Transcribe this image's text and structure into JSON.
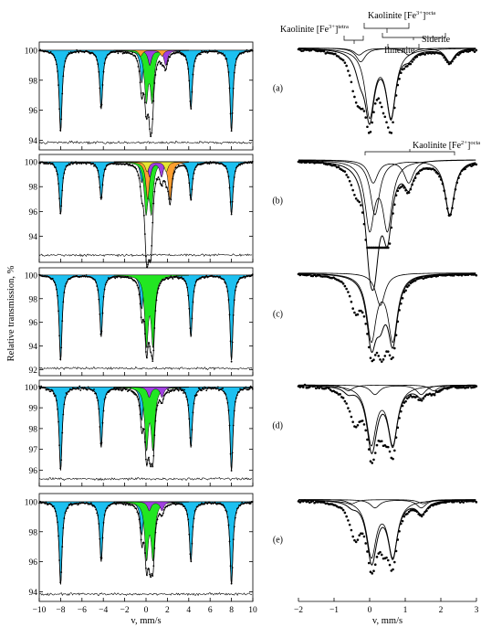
{
  "chart_data": {
    "type": "scatter",
    "ylabel": "Relative transmission, %",
    "left_xlabel": "v, mm/s",
    "right_xlabel": "v, mm/s",
    "left_xlim": [
      -10,
      10
    ],
    "right_xlim": [
      -2,
      3
    ],
    "left_xticks": [
      "−10",
      "−8",
      "−6",
      "−4",
      "−2",
      "0",
      "2",
      "4",
      "6",
      "8",
      "10"
    ],
    "right_xticks": [
      "−2",
      "−1",
      "0",
      "1",
      "2",
      "3"
    ],
    "colors": {
      "magnetic": "#1cc0f0",
      "doublet_green": "#22e622",
      "doublet_orange": "#ff9f30",
      "doublet_purple": "#a040e0",
      "doublet_yellow": "#e6e633"
    },
    "annotations": {
      "kaolinite_tetra": {
        "text": "Kaolinite [Fe",
        "sup": "3+",
        "tail": "]",
        "sub": "tetra"
      },
      "kaolinite_octa3": {
        "text": "Kaolinite [Fe",
        "sup": "3+",
        "tail": "]",
        "sub": "octa"
      },
      "siderite": "Siderite",
      "ilmenite": "Ilmenite",
      "kaolinite_octa2": {
        "text": "Kaolinite [Fe",
        "sup": "2+",
        "tail": "]",
        "sub": "octa"
      }
    },
    "panels": [
      {
        "label": "(a)",
        "ylim": [
          93.6,
          100.3
        ],
        "yticks": [
          "100",
          "98",
          "96",
          "94"
        ],
        "min": 94.6,
        "doublets": [
          {
            "c": 0.3,
            "q": 0.55,
            "d": 3.2,
            "col": "green"
          },
          {
            "c": 1.1,
            "q": 1.5,
            "d": 1.0,
            "col": "purple"
          },
          {
            "c": 0.5,
            "q": 2.0,
            "d": 0.4,
            "col": "orange"
          }
        ],
        "right_doublets": [
          {
            "c": 0.3,
            "q": 0.6,
            "d": 4.8
          },
          {
            "c": 1.0,
            "q": 2.5,
            "d": 1.0
          },
          {
            "c": 0.4,
            "q": 1.4,
            "d": 0.5
          }
        ]
      },
      {
        "label": "(b)",
        "ylim": [
          92.2,
          100.3
        ],
        "yticks": [
          "100",
          "98",
          "96",
          "94"
        ],
        "min": 95.8,
        "doublets": [
          {
            "c": 0.25,
            "q": 0.5,
            "d": 3.8,
            "col": "green"
          },
          {
            "c": 1.2,
            "q": 2.1,
            "d": 3.0,
            "col": "orange"
          },
          {
            "c": 0.9,
            "q": 1.1,
            "d": 1.2,
            "col": "purple"
          },
          {
            "c": 1.0,
            "q": 1.8,
            "d": 0.8,
            "col": "yellow"
          }
        ],
        "right_doublets": [
          {
            "c": 0.25,
            "q": 0.5,
            "d": 5.8
          },
          {
            "c": 1.2,
            "q": 2.1,
            "d": 4.8
          },
          {
            "c": 0.6,
            "q": 1.0,
            "d": 2.0
          }
        ]
      },
      {
        "label": "(c)",
        "ylim": [
          91.8,
          100.3
        ],
        "yticks": [
          "100",
          "98",
          "96",
          "94",
          "92"
        ],
        "min": 92.8,
        "doublets": [
          {
            "c": 0.35,
            "q": 0.6,
            "d": 5.6,
            "col": "green"
          }
        ],
        "right_doublets": [
          {
            "c": 0.35,
            "q": 0.6,
            "d": 6.0
          },
          {
            "c": 0.3,
            "q": 0.0,
            "d": 1.5
          }
        ]
      },
      {
        "label": "(d)",
        "ylim": [
          95.4,
          100.15
        ],
        "yticks": [
          "100",
          "99",
          "98",
          "97",
          "96"
        ],
        "min": 96.0,
        "doublets": [
          {
            "c": 0.35,
            "q": 0.6,
            "d": 2.8,
            "col": "green"
          },
          {
            "c": 0.9,
            "q": 1.2,
            "d": 0.5,
            "col": "purple"
          }
        ],
        "right_doublets": [
          {
            "c": 0.35,
            "q": 0.6,
            "d": 3.0
          },
          {
            "c": 0.8,
            "q": 1.3,
            "d": 0.5
          },
          {
            "c": 0.6,
            "q": 2.4,
            "d": 0.3
          }
        ]
      },
      {
        "label": "(e)",
        "ylim": [
          93.6,
          100.3
        ],
        "yticks": [
          "100",
          "98",
          "96",
          "94"
        ],
        "min": 94.5,
        "doublets": [
          {
            "c": 0.35,
            "q": 0.6,
            "d": 3.6,
            "col": "green"
          },
          {
            "c": 0.9,
            "q": 1.2,
            "d": 0.6,
            "col": "purple"
          }
        ],
        "right_doublets": [
          {
            "c": 0.35,
            "q": 0.6,
            "d": 4.0
          },
          {
            "c": 0.8,
            "q": 1.3,
            "d": 0.6
          },
          {
            "c": 0.5,
            "q": 2.0,
            "d": 0.3
          }
        ]
      }
    ],
    "sextet_lines": [
      -8.0,
      -4.2,
      -0.4,
      0.4,
      4.2,
      8.0
    ],
    "sextet_ratio": [
      1.0,
      0.72,
      0.38,
      0.38,
      0.72,
      1.0
    ]
  }
}
